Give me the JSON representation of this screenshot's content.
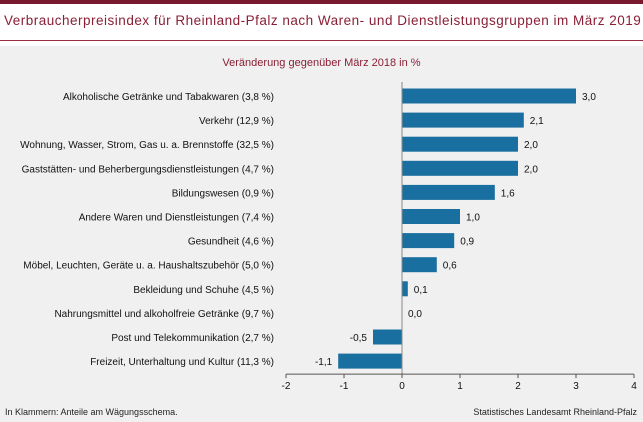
{
  "title": "Verbraucherpreisindex für Rheinland-Pfalz nach Waren- und Dienstleistungsgruppen im März 2019",
  "footnote_left": "In Klammern: Anteile am Wägungsschema.",
  "footnote_right": "Statistisches Landesamt Rheinland-Pfalz",
  "colors": {
    "bar": "#1a6fa1",
    "title": "#8a1f35",
    "panel": "#f0f0f0"
  },
  "chart_data": {
    "type": "bar",
    "orientation": "horizontal",
    "title": "Veränderung gegenüber März 2018 in %",
    "categories": [
      "Alkoholische Getränke und Tabakwaren (3,8 %)",
      "Verkehr (12,9 %)",
      "Wohnung, Wasser, Strom, Gas u. a. Brennstoffe (32,5 %)",
      "Gaststätten- und Beherbergungsdienstleistungen (4,7 %)",
      "Bildungswesen (0,9 %)",
      "Andere Waren und Dienstleistungen (7,4 %)",
      "Gesundheit (4,6 %)",
      "Möbel, Leuchten, Geräte u. a. Haushaltszubehör (5,0 %)",
      "Bekleidung und Schuhe (4,5 %)",
      "Nahrungsmittel und alkoholfreie Getränke (9,7 %)",
      "Post und Telekommunikation (2,7 %)",
      "Freizeit, Unterhaltung und Kultur (11,3 %)"
    ],
    "values": [
      3.0,
      2.1,
      2.0,
      2.0,
      1.6,
      1.0,
      0.9,
      0.6,
      0.1,
      0.0,
      -0.5,
      -1.1
    ],
    "value_labels": [
      "3,0",
      "2,1",
      "2,0",
      "2,0",
      "1,6",
      "1,0",
      "0,9",
      "0,6",
      "0,1",
      "0,0",
      "-0,5",
      "-1,1"
    ],
    "xlim": [
      -2,
      4
    ],
    "xticks": [
      -2,
      -1,
      0,
      1,
      2,
      3,
      4
    ],
    "xtick_labels": [
      "-2",
      "-1",
      "0",
      "1",
      "2",
      "3",
      "4"
    ],
    "grid": false,
    "legend": "none"
  }
}
